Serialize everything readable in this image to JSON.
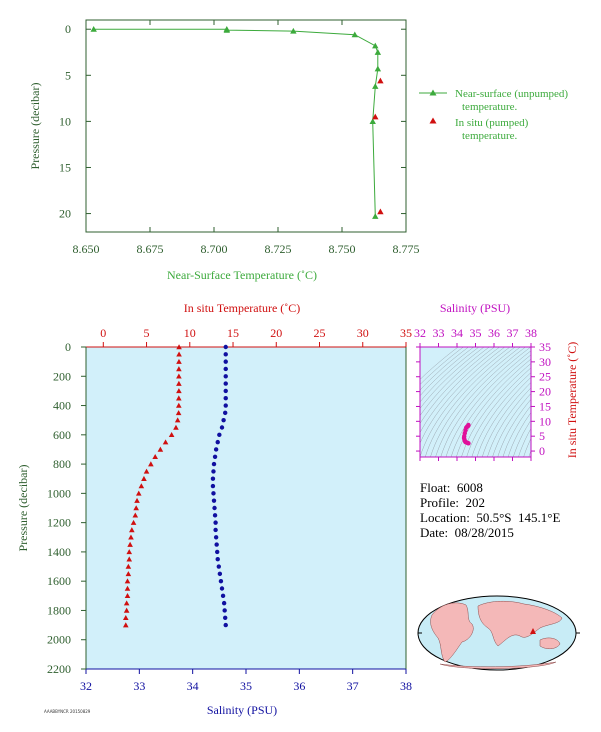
{
  "info": {
    "float_label": "Float:",
    "float_value": "6008",
    "profile_label": "Profile:",
    "profile_value": "202",
    "location_label": "Location:",
    "location_value": "50.5°S  145.1°E",
    "date_label": "Date:",
    "date_value": "08/28/2015"
  },
  "credit": "AAABBYNCR 20150829",
  "colors": {
    "axis_green": "#2f5f2f",
    "series_green": "#3caa3c",
    "temperature_red": "#d01010",
    "salinity_blue": "#1010a0",
    "salinity_magenta": "#c010c0",
    "panel_bg": "#d2f0fa"
  },
  "chart_data": [
    {
      "id": "near_surface",
      "type": "line",
      "xlabel": "Near-Surface Temperature (˚C)",
      "ylabel": "Pressure (decibar)",
      "xlim": [
        8.65,
        8.775
      ],
      "ylim": [
        22,
        -1
      ],
      "xticks": [
        "8.650",
        "8.675",
        "8.700",
        "8.725",
        "8.750",
        "8.775"
      ],
      "yticks": [
        "0",
        "5",
        "10",
        "15",
        "20"
      ],
      "legend_position": "right",
      "series": [
        {
          "name": "Near-surface (unpumped) temperature.",
          "marker": "triangle-line",
          "points": [
            [
              8.653,
              0.0
            ],
            [
              8.705,
              0.0
            ],
            [
              8.705,
              0.1
            ],
            [
              8.731,
              0.2
            ],
            [
              8.755,
              0.6
            ],
            [
              8.763,
              1.8
            ],
            [
              8.764,
              2.5
            ],
            [
              8.764,
              4.3
            ],
            [
              8.763,
              6.2
            ],
            [
              8.762,
              10.0
            ],
            [
              8.763,
              20.3
            ]
          ]
        },
        {
          "name": "In situ (pumped) temperature.",
          "marker": "triangle",
          "points": [
            [
              8.765,
              5.6
            ],
            [
              8.763,
              9.5
            ],
            [
              8.765,
              19.8
            ]
          ]
        }
      ]
    },
    {
      "id": "profile",
      "type": "scatter",
      "x_top_label": "In situ Temperature (˚C)",
      "x_bottom_label": "Salinity (PSU)",
      "ylabel": "Pressure (decibar)",
      "temp_lim": [
        -2,
        35
      ],
      "sal_lim": [
        32,
        38
      ],
      "ylim": [
        2200,
        0
      ],
      "temp_ticks": [
        "0",
        "5",
        "10",
        "15",
        "20",
        "25",
        "30",
        "35"
      ],
      "sal_ticks": [
        "32",
        "33",
        "34",
        "35",
        "36",
        "37",
        "38"
      ],
      "pressure_ticks": [
        "0",
        "200",
        "400",
        "600",
        "800",
        "1000",
        "1200",
        "1400",
        "1600",
        "1800",
        "2000",
        "2200"
      ],
      "temperature": {
        "pressure": [
          0,
          50,
          100,
          150,
          200,
          250,
          300,
          350,
          400,
          450,
          500,
          550,
          600,
          650,
          700,
          750,
          800,
          850,
          900,
          950,
          1000,
          1050,
          1100,
          1150,
          1200,
          1250,
          1300,
          1350,
          1400,
          1450,
          1500,
          1550,
          1600,
          1650,
          1700,
          1750,
          1800,
          1850,
          1900
        ],
        "values": [
          8.76,
          8.76,
          8.75,
          8.74,
          8.74,
          8.74,
          8.74,
          8.73,
          8.73,
          8.71,
          8.6,
          8.4,
          7.9,
          7.2,
          6.6,
          6.0,
          5.5,
          5.0,
          4.7,
          4.4,
          4.1,
          3.9,
          3.8,
          3.7,
          3.5,
          3.3,
          3.2,
          3.1,
          3.0,
          3.0,
          2.9,
          2.9,
          2.8,
          2.8,
          2.8,
          2.7,
          2.7,
          2.6,
          2.6
        ]
      },
      "salinity": {
        "pressure": [
          0,
          50,
          100,
          150,
          200,
          250,
          300,
          350,
          400,
          450,
          500,
          550,
          600,
          650,
          700,
          750,
          800,
          850,
          900,
          950,
          1000,
          1050,
          1100,
          1150,
          1200,
          1250,
          1300,
          1350,
          1400,
          1450,
          1500,
          1550,
          1600,
          1650,
          1700,
          1750,
          1800,
          1850,
          1900
        ],
        "values": [
          34.62,
          34.62,
          34.62,
          34.62,
          34.62,
          34.62,
          34.62,
          34.62,
          34.62,
          34.61,
          34.58,
          34.55,
          34.5,
          34.47,
          34.44,
          34.42,
          34.4,
          34.39,
          34.38,
          34.38,
          34.39,
          34.4,
          34.41,
          34.42,
          34.43,
          34.43,
          34.44,
          34.45,
          34.46,
          34.47,
          34.49,
          34.51,
          34.53,
          34.55,
          34.57,
          34.59,
          34.6,
          34.61,
          34.62
        ]
      }
    },
    {
      "id": "ts_diagram",
      "type": "scatter",
      "xlabel": "Salinity (PSU)",
      "ylabel": "In situ Temperature (˚C)",
      "xlim": [
        32,
        38
      ],
      "ylim": [
        -2,
        35
      ],
      "xticks": [
        "32",
        "33",
        "34",
        "35",
        "36",
        "37",
        "38"
      ],
      "yticks": [
        "0",
        "5",
        "10",
        "15",
        "20",
        "25",
        "30",
        "35"
      ],
      "points": [
        [
          34.62,
          8.76
        ],
        [
          34.61,
          8.5
        ],
        [
          34.55,
          8.2
        ],
        [
          34.5,
          7.9
        ],
        [
          34.46,
          7.0
        ],
        [
          34.42,
          6.0
        ],
        [
          34.39,
          5.0
        ],
        [
          34.38,
          4.4
        ],
        [
          34.4,
          3.9
        ],
        [
          34.42,
          3.5
        ],
        [
          34.44,
          3.2
        ],
        [
          34.47,
          3.0
        ],
        [
          34.51,
          2.9
        ],
        [
          34.55,
          2.8
        ],
        [
          34.59,
          2.7
        ],
        [
          34.62,
          2.6
        ]
      ]
    }
  ]
}
